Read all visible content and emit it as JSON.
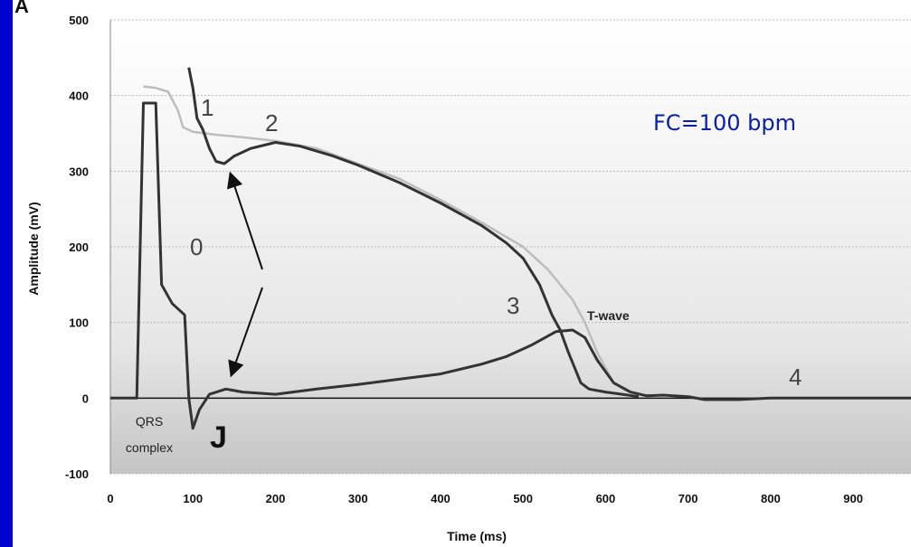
{
  "chart_data": {
    "type": "line",
    "xlabel": "Time (ms)",
    "ylabel": "Amplitude (mV)",
    "xlim": [
      0,
      970
    ],
    "ylim": [
      -100,
      500
    ],
    "x_ticks": [
      0,
      100,
      200,
      300,
      400,
      500,
      600,
      700,
      800,
      900
    ],
    "y_ticks": [
      -100,
      0,
      100,
      200,
      300,
      400,
      500
    ],
    "corner_label": "A",
    "series": [
      {
        "color": "#bdbdbd",
        "points": [
          [
            40,
            412
          ],
          [
            55,
            410
          ],
          [
            70,
            405
          ],
          [
            82,
            380
          ],
          [
            88,
            358
          ],
          [
            100,
            352
          ],
          [
            130,
            348
          ],
          [
            160,
            345
          ],
          [
            200,
            340
          ],
          [
            250,
            330
          ],
          [
            300,
            310
          ],
          [
            350,
            290
          ],
          [
            400,
            262
          ],
          [
            450,
            232
          ],
          [
            500,
            200
          ],
          [
            530,
            170
          ],
          [
            560,
            130
          ],
          [
            575,
            100
          ],
          [
            590,
            60
          ],
          [
            610,
            20
          ],
          [
            625,
            10
          ],
          [
            640,
            5
          ],
          [
            660,
            3
          ]
        ]
      },
      {
        "color": "#333333",
        "points": [
          [
            95,
            437
          ],
          [
            100,
            410
          ],
          [
            105,
            370
          ],
          [
            112,
            355
          ],
          [
            120,
            330
          ],
          [
            128,
            313
          ],
          [
            138,
            310
          ],
          [
            150,
            320
          ],
          [
            170,
            330
          ],
          [
            200,
            338
          ],
          [
            230,
            333
          ],
          [
            270,
            320
          ],
          [
            300,
            308
          ],
          [
            350,
            285
          ],
          [
            400,
            258
          ],
          [
            450,
            228
          ],
          [
            480,
            205
          ],
          [
            500,
            185
          ],
          [
            520,
            150
          ],
          [
            535,
            110
          ],
          [
            545,
            90
          ],
          [
            555,
            60
          ],
          [
            570,
            20
          ],
          [
            580,
            12
          ],
          [
            600,
            8
          ],
          [
            620,
            5
          ],
          [
            640,
            2
          ]
        ]
      },
      {
        "color": "#333333",
        "points": [
          [
            0,
            0
          ],
          [
            32,
            0
          ],
          [
            40,
            390
          ],
          [
            55,
            390
          ],
          [
            62,
            150
          ],
          [
            75,
            125
          ],
          [
            90,
            110
          ],
          [
            95,
            0
          ],
          [
            100,
            -40
          ],
          [
            108,
            -15
          ],
          [
            120,
            5
          ],
          [
            140,
            12
          ],
          [
            160,
            8
          ],
          [
            200,
            5
          ],
          [
            250,
            12
          ],
          [
            300,
            18
          ],
          [
            350,
            25
          ],
          [
            400,
            32
          ],
          [
            450,
            45
          ],
          [
            480,
            55
          ],
          [
            510,
            70
          ],
          [
            540,
            88
          ],
          [
            560,
            90
          ],
          [
            575,
            80
          ],
          [
            590,
            50
          ],
          [
            610,
            20
          ],
          [
            630,
            8
          ],
          [
            650,
            3
          ],
          [
            670,
            4
          ],
          [
            700,
            2
          ],
          [
            720,
            -2
          ],
          [
            760,
            -2
          ],
          [
            800,
            0
          ],
          [
            850,
            0
          ],
          [
            970,
            0
          ]
        ]
      }
    ],
    "annotations": {
      "phase_0": "0",
      "phase_1": "1",
      "phase_2": "2",
      "phase_3": "3",
      "phase_4": "4",
      "j_point": "J",
      "qrs_line1": "QRS",
      "qrs_line2": "complex",
      "t_wave": "T-wave",
      "heart_rate": "FC=100 bpm"
    }
  }
}
